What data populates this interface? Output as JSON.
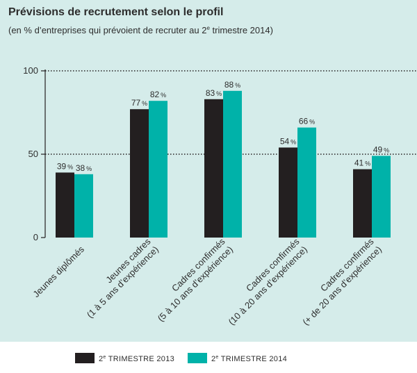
{
  "chart_data": {
    "type": "bar",
    "title": "Prévisions de recrutement selon le profil",
    "subtitle": {
      "before": "(en % d’entreprises qui prévoient de recruter au 2",
      "sup": "e",
      "after": " trimestre 2014)"
    },
    "ylim": [
      0,
      100
    ],
    "yticks": [
      "100",
      "50",
      "0"
    ],
    "ytick_values": [
      100,
      50,
      0
    ],
    "dotted_gridlines": [
      100,
      50
    ],
    "categories": [
      [
        "Jeunes diplômés"
      ],
      [
        "Jeunes cadres",
        "(1 à 5 ans d’expérience)"
      ],
      [
        "Cadres confirmés",
        "(5 à 10 ans d’expérience)"
      ],
      [
        "Cadres confirmés",
        "(10 à 20 ans d’expérience)"
      ],
      [
        "Cadres confirmés",
        "(+ de 20 ans d’expérience)"
      ]
    ],
    "series": [
      {
        "name": {
          "pre": "2",
          "sup": "e",
          "post": " TRIMESTRE 2013"
        },
        "color": "#231f20",
        "values": [
          39,
          77,
          83,
          54,
          41
        ],
        "labels": [
          "39",
          "77",
          "83",
          "54",
          "41"
        ]
      },
      {
        "name": {
          "pre": "2",
          "sup": "e",
          "post": " TRIMESTRE 2014"
        },
        "color": "#00b2a9",
        "values": [
          38,
          82,
          88,
          66,
          49
        ],
        "labels": [
          "38",
          "82",
          "88",
          "66",
          "49"
        ]
      }
    ],
    "unit": "%"
  },
  "colors": {
    "panel_background": "#d5ecea",
    "legend_background": "#ffffff",
    "text": "#2d2d2d",
    "gridline": "#231f20"
  }
}
